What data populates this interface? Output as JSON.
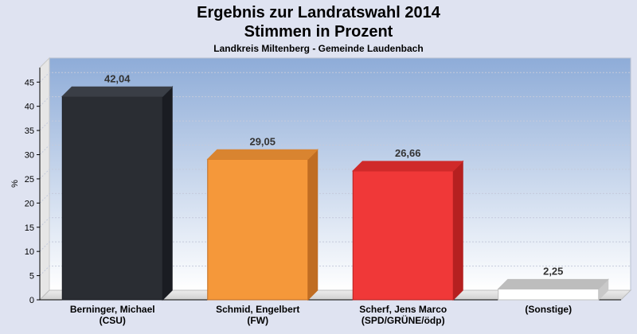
{
  "header": {
    "title_line1": "Ergebnis zur Landratswahl 2014",
    "title_line2": "Stimmen in Prozent",
    "subtitle": "Landkreis Miltenberg - Gemeinde Laudenbach"
  },
  "chart_data": {
    "type": "bar",
    "ylabel": "%",
    "ylim": [
      0,
      48
    ],
    "yticks": [
      0,
      5,
      10,
      15,
      20,
      25,
      30,
      35,
      40,
      45
    ],
    "grid": true,
    "categories": [
      [
        "Berninger, Michael",
        "(CSU)"
      ],
      [
        "Schmid, Engelbert",
        "(FW)"
      ],
      [
        "Scherf, Jens Marco",
        "(SPD/GRÜNE/ödp)"
      ],
      [
        "(Sonstige)"
      ]
    ],
    "values": [
      42.04,
      29.05,
      26.66,
      2.25
    ],
    "value_labels": [
      "42,04",
      "29,05",
      "26,66",
      "2,25"
    ],
    "colors": [
      "#2a2d33",
      "#f5983a",
      "#f03838",
      "#ffffff"
    ],
    "side_colors": [
      "#1a1c22",
      "#c06d22",
      "#b52020",
      "#c9c9c9"
    ],
    "top_colors": [
      "#3a3e46",
      "#d98430",
      "#d02a2a",
      "#bdbdbd"
    ]
  }
}
